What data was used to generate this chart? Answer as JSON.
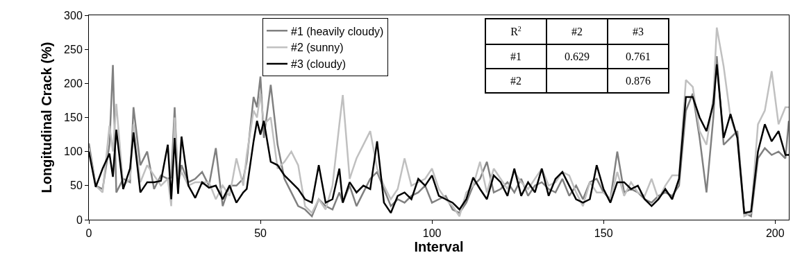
{
  "chart_data": {
    "type": "line",
    "xlabel": "Interval",
    "ylabel": "Longitudinal Crack (%)",
    "x": [
      0,
      2,
      4,
      6,
      7,
      8,
      10,
      12,
      13,
      15,
      17,
      19,
      21,
      23,
      24,
      25,
      26,
      27,
      29,
      31,
      33,
      35,
      37,
      39,
      41,
      43,
      45,
      46,
      48,
      49,
      50,
      51,
      53,
      55,
      57,
      59,
      61,
      63,
      65,
      67,
      69,
      71,
      73,
      74,
      76,
      78,
      80,
      82,
      84,
      86,
      88,
      90,
      92,
      94,
      96,
      98,
      100,
      102,
      104,
      106,
      108,
      110,
      112,
      114,
      116,
      118,
      120,
      122,
      124,
      126,
      128,
      130,
      132,
      134,
      136,
      138,
      140,
      142,
      144,
      146,
      148,
      150,
      152,
      154,
      156,
      158,
      160,
      162,
      164,
      166,
      168,
      170,
      172,
      174,
      176,
      178,
      180,
      182,
      183,
      185,
      187,
      189,
      191,
      193,
      195,
      197,
      199,
      201,
      203,
      204
    ],
    "series": [
      {
        "name": "#1 (heavily cloudy)",
        "color": "#808080",
        "values": [
          112,
          50,
          45,
          110,
          227,
          40,
          60,
          55,
          165,
          80,
          100,
          45,
          65,
          60,
          62,
          165,
          50,
          80,
          55,
          60,
          70,
          50,
          105,
          20,
          50,
          50,
          60,
          85,
          180,
          165,
          210,
          120,
          198,
          110,
          60,
          40,
          20,
          15,
          5,
          30,
          20,
          15,
          40,
          25,
          50,
          20,
          40,
          60,
          70,
          45,
          20,
          30,
          25,
          35,
          40,
          50,
          25,
          30,
          35,
          15,
          10,
          25,
          50,
          60,
          85,
          40,
          45,
          55,
          40,
          60,
          35,
          50,
          55,
          45,
          40,
          60,
          35,
          50,
          30,
          55,
          60,
          40,
          30,
          100,
          40,
          45,
          40,
          30,
          25,
          35,
          40,
          35,
          50,
          160,
          185,
          120,
          40,
          150,
          240,
          110,
          120,
          130,
          10,
          5,
          90,
          105,
          95,
          100,
          90,
          145
        ]
      },
      {
        "name": "#2 (sunny)",
        "color": "#c0c0c0",
        "values": [
          105,
          50,
          40,
          138,
          100,
          170,
          50,
          60,
          140,
          55,
          80,
          65,
          50,
          60,
          20,
          150,
          55,
          70,
          50,
          55,
          55,
          55,
          30,
          50,
          35,
          90,
          50,
          95,
          160,
          150,
          185,
          140,
          150,
          75,
          85,
          100,
          80,
          20,
          10,
          30,
          15,
          50,
          140,
          183,
          60,
          90,
          110,
          130,
          75,
          50,
          30,
          45,
          90,
          50,
          55,
          60,
          75,
          45,
          30,
          20,
          5,
          40,
          50,
          85,
          40,
          75,
          60,
          45,
          70,
          55,
          45,
          60,
          75,
          50,
          55,
          70,
          65,
          40,
          20,
          55,
          40,
          40,
          30,
          70,
          35,
          55,
          40,
          35,
          60,
          30,
          50,
          65,
          65,
          205,
          195,
          130,
          110,
          180,
          282,
          225,
          150,
          120,
          5,
          10,
          140,
          160,
          218,
          140,
          165,
          165
        ]
      },
      {
        "name": "#3 (cloudy)",
        "color": "#000000",
        "values": [
          100,
          48,
          75,
          97,
          63,
          132,
          45,
          75,
          128,
          40,
          55,
          55,
          57,
          110,
          30,
          120,
          38,
          122,
          50,
          32,
          55,
          47,
          50,
          30,
          50,
          25,
          40,
          45,
          115,
          145,
          125,
          145,
          85,
          80,
          65,
          55,
          45,
          30,
          25,
          80,
          25,
          30,
          75,
          25,
          55,
          40,
          50,
          45,
          115,
          25,
          10,
          35,
          40,
          30,
          60,
          50,
          65,
          35,
          30,
          25,
          15,
          30,
          62,
          45,
          30,
          65,
          55,
          35,
          75,
          35,
          55,
          40,
          75,
          35,
          60,
          70,
          50,
          30,
          25,
          30,
          80,
          45,
          25,
          55,
          55,
          45,
          50,
          30,
          20,
          30,
          45,
          30,
          60,
          180,
          180,
          150,
          130,
          170,
          228,
          120,
          155,
          120,
          10,
          12,
          100,
          140,
          115,
          130,
          95,
          95
        ]
      }
    ],
    "xlim": [
      0,
      204
    ],
    "xticks": [
      0,
      50,
      100,
      150,
      200
    ],
    "ylim": [
      0,
      300
    ],
    "yticks": [
      0,
      50,
      100,
      150,
      200,
      250,
      300
    ],
    "grid": false,
    "legend": "top",
    "marker": "none",
    "line_style": "solid",
    "annotations": [
      "R$^{2}$",
      "#2",
      "#3",
      "#1",
      "0.629",
      "0.761",
      "#2",
      "0.876"
    ]
  }
}
